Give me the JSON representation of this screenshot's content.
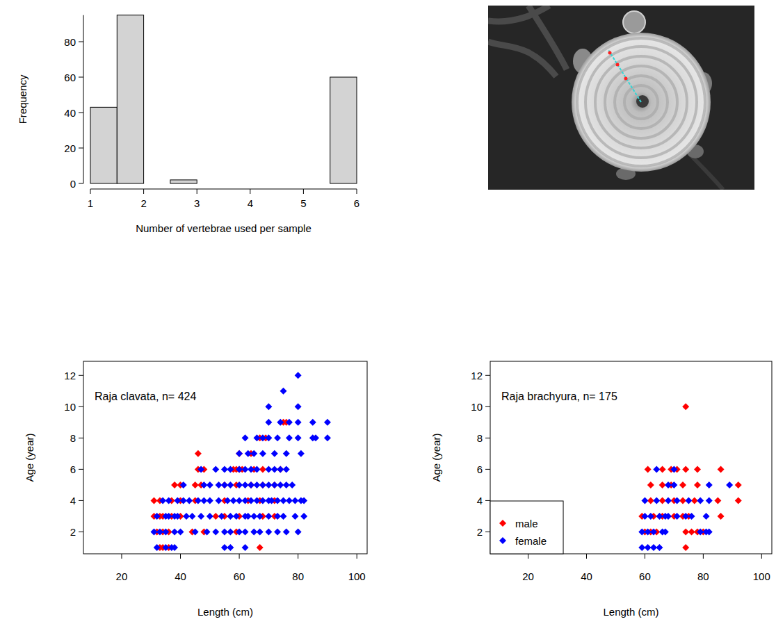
{
  "chart_data": [
    {
      "type": "histogram",
      "x_label": "Number of vertebrae used per sample",
      "y_label": "Frequency",
      "bins": [
        1,
        1.5,
        2,
        2.5,
        3,
        3.5,
        4,
        4.5,
        5,
        5.5,
        6
      ],
      "values": [
        43,
        95,
        0,
        2,
        0,
        0,
        0,
        0,
        0,
        60
      ],
      "color": "#d3d3d3",
      "xlim": [
        1,
        6
      ],
      "xticks": [
        1,
        2,
        3,
        4,
        5,
        6
      ],
      "ylim": [
        0,
        95
      ],
      "yticks": [
        0,
        20,
        40,
        60,
        80
      ]
    },
    {
      "type": "scatter",
      "title": "Raja clavata, n= 424",
      "x_label": "Length (cm)",
      "y_label": "Age (year)",
      "xlim": [
        7,
        103.5
      ],
      "xticks": [
        20,
        40,
        60,
        80,
        100
      ],
      "ylim": [
        0.6,
        12.9
      ],
      "yticks": [
        2,
        4,
        6,
        8,
        10,
        12
      ],
      "marker": "diamond",
      "series": [
        {
          "color": "#ff0000",
          "x": [
            33,
            34,
            36,
            67,
            32,
            34,
            36,
            44,
            48,
            59,
            31,
            33,
            34,
            37,
            40,
            52,
            55,
            60,
            68,
            72,
            31,
            33,
            37,
            40,
            45,
            55,
            63,
            67,
            72,
            38,
            40,
            45,
            47,
            55,
            59,
            64,
            68,
            72,
            46,
            48,
            58,
            59,
            60,
            61,
            65,
            68,
            74,
            46,
            60,
            64,
            67,
            69,
            75,
            76
          ],
          "values": [
            1,
            1,
            1,
            1,
            2,
            2,
            2,
            2,
            2,
            2,
            3,
            3,
            3,
            3,
            3,
            3,
            3,
            3,
            3,
            3,
            4,
            4,
            4,
            4,
            4,
            4,
            4,
            4,
            4,
            5,
            5,
            5,
            5,
            5,
            5,
            5,
            5,
            5,
            6,
            6,
            6,
            6,
            6,
            6,
            6,
            6,
            6,
            7,
            7,
            7,
            8,
            8,
            9,
            9
          ]
        },
        {
          "color": "#0000ff",
          "x": [
            32,
            35,
            37,
            38,
            55,
            57,
            62,
            31,
            33,
            35,
            38,
            40,
            45,
            49,
            52,
            55,
            57,
            60,
            62,
            65,
            67,
            70,
            73,
            76,
            80,
            32,
            35,
            36,
            38,
            39,
            42,
            44,
            47,
            50,
            54,
            57,
            59,
            62,
            63,
            65,
            67,
            70,
            73,
            75,
            79,
            82,
            34,
            36,
            39,
            41,
            43,
            46,
            48,
            50,
            53,
            56,
            58,
            60,
            62,
            64,
            66,
            68,
            70,
            71,
            73,
            75,
            77,
            79,
            81,
            82,
            41,
            48,
            50,
            53,
            55,
            57,
            60,
            62,
            64,
            66,
            68,
            70,
            72,
            74,
            76,
            78,
            47,
            52,
            55,
            57,
            60,
            62,
            64,
            66,
            70,
            72,
            74,
            76,
            60,
            63,
            65,
            68,
            72,
            76,
            81,
            62,
            66,
            68,
            70,
            73,
            77,
            80,
            85,
            86,
            90,
            70,
            74,
            77,
            80,
            85,
            90,
            70,
            80,
            75,
            80
          ],
          "values": [
            1,
            1,
            1,
            1,
            1,
            1,
            1,
            2,
            2,
            2,
            2,
            2,
            2,
            2,
            2,
            2,
            2,
            2,
            2,
            2,
            2,
            2,
            2,
            2,
            2,
            3,
            3,
            3,
            3,
            3,
            3,
            3,
            3,
            3,
            3,
            3,
            3,
            3,
            3,
            3,
            3,
            3,
            3,
            3,
            3,
            3,
            4,
            4,
            4,
            4,
            4,
            4,
            4,
            4,
            4,
            4,
            4,
            4,
            4,
            4,
            4,
            4,
            4,
            4,
            4,
            4,
            4,
            4,
            4,
            4,
            5,
            5,
            5,
            5,
            5,
            5,
            5,
            5,
            5,
            5,
            5,
            5,
            5,
            5,
            5,
            5,
            6,
            6,
            6,
            6,
            6,
            6,
            6,
            6,
            6,
            6,
            6,
            6,
            7,
            7,
            7,
            7,
            7,
            7,
            7,
            8,
            8,
            8,
            8,
            8,
            8,
            8,
            8,
            8,
            8,
            9,
            9,
            9,
            9,
            9,
            9,
            10,
            10,
            11,
            12
          ]
        }
      ]
    },
    {
      "type": "scatter",
      "title": "Raja brachyura, n= 175",
      "x_label": "Length (cm)",
      "y_label": "Age (year)",
      "xlim": [
        7,
        103.5
      ],
      "xticks": [
        20,
        40,
        60,
        80,
        100
      ],
      "ylim": [
        0.6,
        12.9
      ],
      "yticks": [
        2,
        4,
        6,
        8,
        10,
        12
      ],
      "marker": "diamond",
      "legend": "bottomleft",
      "series": [
        {
          "name": "male",
          "color": "#ff0000",
          "x": [
            74,
            60,
            62,
            64,
            74,
            76,
            78,
            80,
            59,
            63,
            66,
            70,
            73,
            75,
            86,
            62,
            66,
            70,
            73,
            77,
            85,
            92,
            62,
            66,
            69,
            73,
            78,
            92,
            61,
            66,
            69,
            71,
            74,
            78,
            86,
            74
          ],
          "values": [
            1,
            2,
            2,
            2,
            2,
            2,
            2,
            2,
            3,
            3,
            3,
            3,
            3,
            3,
            3,
            4,
            4,
            4,
            4,
            4,
            4,
            4,
            5,
            5,
            5,
            5,
            5,
            5,
            6,
            6,
            6,
            6,
            6,
            6,
            6,
            10
          ]
        },
        {
          "name": "female",
          "color": "#0000ff",
          "x": [
            59,
            61,
            63,
            65,
            59,
            61,
            63,
            66,
            67,
            79,
            81,
            82,
            60,
            62,
            65,
            67,
            68,
            71,
            74,
            76,
            81,
            60,
            64,
            68,
            71,
            75,
            79,
            82,
            68,
            70,
            82,
            89,
            64,
            70
          ],
          "values": [
            1,
            1,
            1,
            1,
            2,
            2,
            2,
            2,
            2,
            2,
            2,
            2,
            3,
            3,
            3,
            3,
            3,
            3,
            3,
            3,
            3,
            4,
            4,
            4,
            4,
            4,
            4,
            4,
            5,
            5,
            5,
            5,
            6,
            6
          ]
        }
      ]
    }
  ]
}
